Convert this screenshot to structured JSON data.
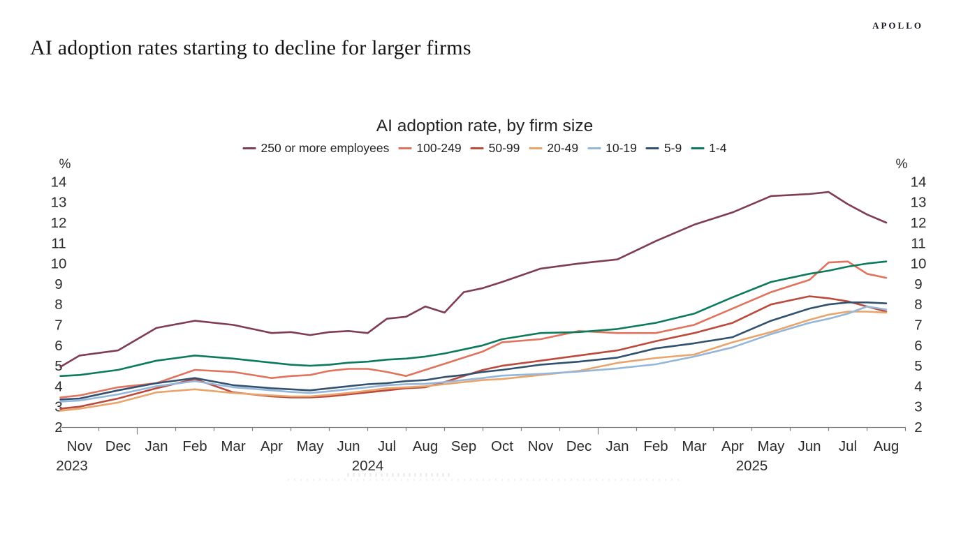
{
  "header": {
    "title": "AI adoption rates starting to decline for larger firms",
    "brand": "APOLLO"
  },
  "chart_data": {
    "type": "line",
    "title": "AI adoption rate, by firm size",
    "unit_label": "%",
    "grid": false,
    "legend_position": "top-center",
    "y_range": [
      2,
      14
    ],
    "y_ticks": [
      2,
      3,
      4,
      5,
      6,
      7,
      8,
      9,
      10,
      11,
      12,
      13,
      14
    ],
    "x_labels": [
      "Nov",
      "Dec",
      "Jan",
      "Feb",
      "Mar",
      "Apr",
      "May",
      "Jun",
      "Jul",
      "Aug",
      "Sep",
      "Oct",
      "Nov",
      "Dec",
      "Jan",
      "Feb",
      "Mar",
      "Apr",
      "May",
      "Jun",
      "Jul",
      "Aug"
    ],
    "year_labels": [
      {
        "label": "2023",
        "pos": -0.2
      },
      {
        "label": "2024",
        "pos": 7.5
      },
      {
        "label": "2025",
        "pos": 17.5
      }
    ],
    "x": [
      -0.5,
      0,
      1,
      2,
      3,
      4,
      5,
      5.5,
      6,
      6.5,
      7,
      7.5,
      8,
      8.5,
      9,
      9.5,
      10,
      10.5,
      11,
      12,
      13,
      14,
      15,
      16,
      17,
      18,
      19,
      19.5,
      20,
      20.5,
      21
    ],
    "series": [
      {
        "name": "250 or more employees",
        "color": "#7E3D50",
        "values": [
          4.95,
          5.5,
          5.75,
          6.85,
          7.2,
          7.0,
          6.6,
          6.65,
          6.5,
          6.65,
          6.7,
          6.6,
          7.3,
          7.4,
          7.9,
          7.6,
          8.6,
          8.8,
          9.1,
          9.75,
          10.0,
          10.2,
          11.1,
          11.9,
          12.5,
          13.3,
          13.4,
          13.5,
          12.9,
          12.4,
          12.0
        ]
      },
      {
        "name": "100-249",
        "color": "#E0735E",
        "values": [
          3.45,
          3.55,
          3.95,
          4.15,
          4.8,
          4.7,
          4.4,
          4.5,
          4.55,
          4.75,
          4.85,
          4.85,
          4.7,
          4.5,
          4.8,
          5.1,
          5.4,
          5.7,
          6.15,
          6.3,
          6.7,
          6.6,
          6.6,
          7.0,
          7.8,
          8.6,
          9.2,
          10.05,
          10.1,
          9.5,
          9.3
        ]
      },
      {
        "name": "50-99",
        "color": "#BC4A3C",
        "values": [
          2.9,
          3.0,
          3.4,
          3.9,
          4.35,
          3.7,
          3.5,
          3.45,
          3.45,
          3.5,
          3.6,
          3.7,
          3.8,
          3.9,
          3.95,
          4.2,
          4.5,
          4.8,
          5.0,
          5.25,
          5.5,
          5.75,
          6.2,
          6.6,
          7.1,
          8.0,
          8.4,
          8.3,
          8.15,
          7.9,
          7.65
        ]
      },
      {
        "name": "20-49",
        "color": "#E9A46C",
        "values": [
          2.8,
          2.9,
          3.2,
          3.7,
          3.85,
          3.67,
          3.55,
          3.5,
          3.5,
          3.58,
          3.67,
          3.78,
          3.9,
          3.95,
          4.0,
          4.1,
          4.2,
          4.3,
          4.35,
          4.55,
          4.75,
          5.14,
          5.38,
          5.55,
          6.15,
          6.65,
          7.25,
          7.5,
          7.65,
          7.65,
          7.6
        ]
      },
      {
        "name": "10-19",
        "color": "#94B6D9",
        "values": [
          3.25,
          3.3,
          3.6,
          4.0,
          4.25,
          3.95,
          3.8,
          3.72,
          3.67,
          3.75,
          3.85,
          3.95,
          4.05,
          4.1,
          4.12,
          4.2,
          4.3,
          4.4,
          4.52,
          4.6,
          4.72,
          4.87,
          5.07,
          5.45,
          5.9,
          6.55,
          7.1,
          7.3,
          7.55,
          7.9,
          7.75
        ]
      },
      {
        "name": "5-9",
        "color": "#31516F",
        "values": [
          3.35,
          3.4,
          3.8,
          4.15,
          4.4,
          4.05,
          3.9,
          3.85,
          3.8,
          3.9,
          4.0,
          4.1,
          4.15,
          4.25,
          4.3,
          4.45,
          4.55,
          4.7,
          4.8,
          5.05,
          5.2,
          5.4,
          5.85,
          6.1,
          6.4,
          7.2,
          7.8,
          8.0,
          8.1,
          8.1,
          8.05
        ]
      },
      {
        "name": "1-4",
        "color": "#0C7A5B",
        "values": [
          4.5,
          4.55,
          4.8,
          5.25,
          5.5,
          5.35,
          5.15,
          5.05,
          5.0,
          5.05,
          5.15,
          5.2,
          5.3,
          5.35,
          5.45,
          5.6,
          5.8,
          6.0,
          6.3,
          6.6,
          6.65,
          6.8,
          7.1,
          7.55,
          8.35,
          9.1,
          9.5,
          9.65,
          9.85,
          10.0,
          10.1
        ]
      }
    ]
  }
}
